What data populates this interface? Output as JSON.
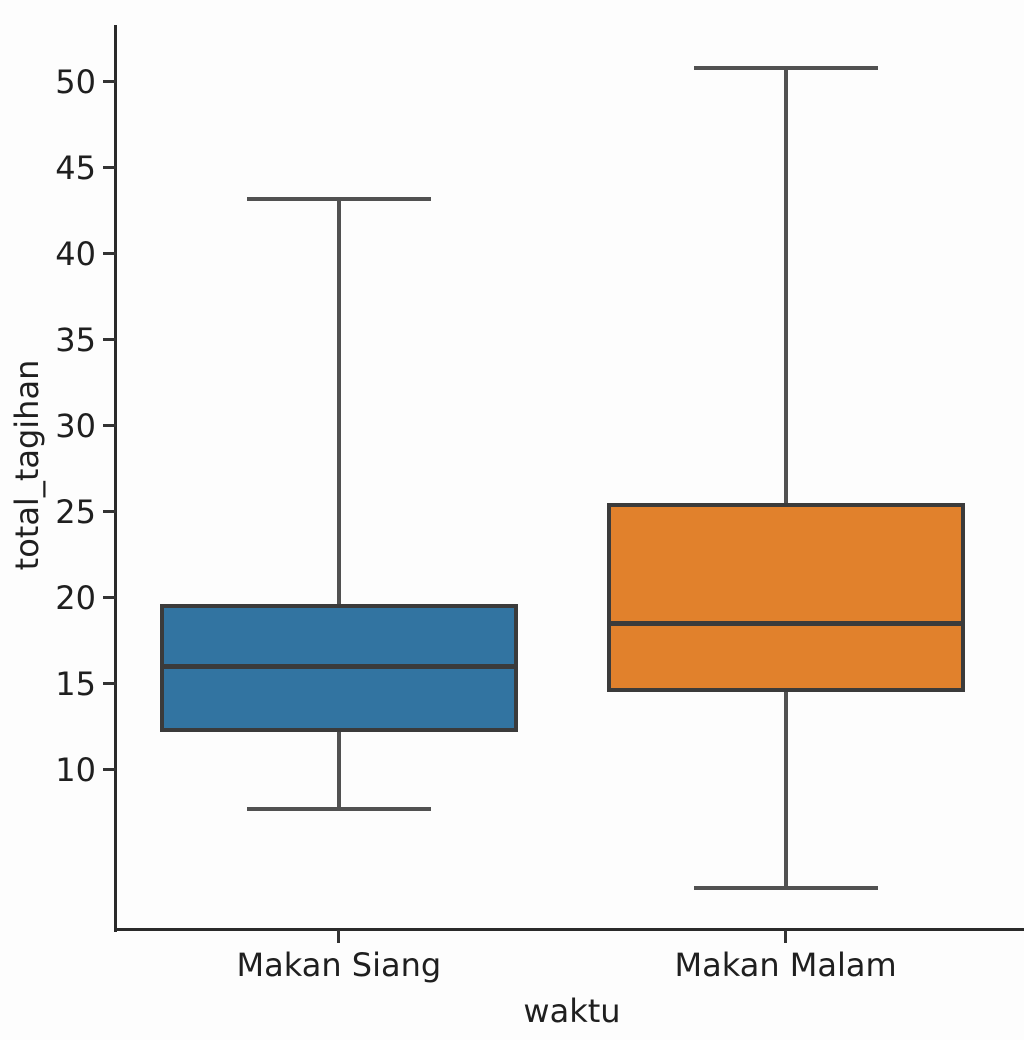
{
  "figure": {
    "background": "#fdfdfd"
  },
  "chart_data": {
    "type": "boxplot",
    "title": "",
    "xlabel": "waktu",
    "ylabel": "total_tagihan",
    "categories": [
      "Makan Siang",
      "Makan Malam"
    ],
    "series": [
      {
        "name": "Makan Siang",
        "color": "#3274a1",
        "stats": {
          "whisker_low": 7.7,
          "q1": 12.3,
          "median": 16.0,
          "q3": 19.5,
          "whisker_high": 43.2
        }
      },
      {
        "name": "Makan Malam",
        "color": "#e1812c",
        "stats": {
          "whisker_low": 3.1,
          "q1": 14.6,
          "median": 18.5,
          "q3": 25.4,
          "whisker_high": 50.8
        }
      }
    ],
    "y_ticks": [
      10,
      15,
      20,
      25,
      30,
      35,
      40,
      45,
      50
    ],
    "ylim": [
      0.7,
      53.3
    ],
    "grid": false,
    "legend": null,
    "colors": {
      "box_edge": "#3b3b3b",
      "median": "#3b3b3b",
      "whisker": "#515151",
      "spine": "#2a2a2a",
      "tick": "#333333",
      "text": "#1f1f1f"
    }
  }
}
